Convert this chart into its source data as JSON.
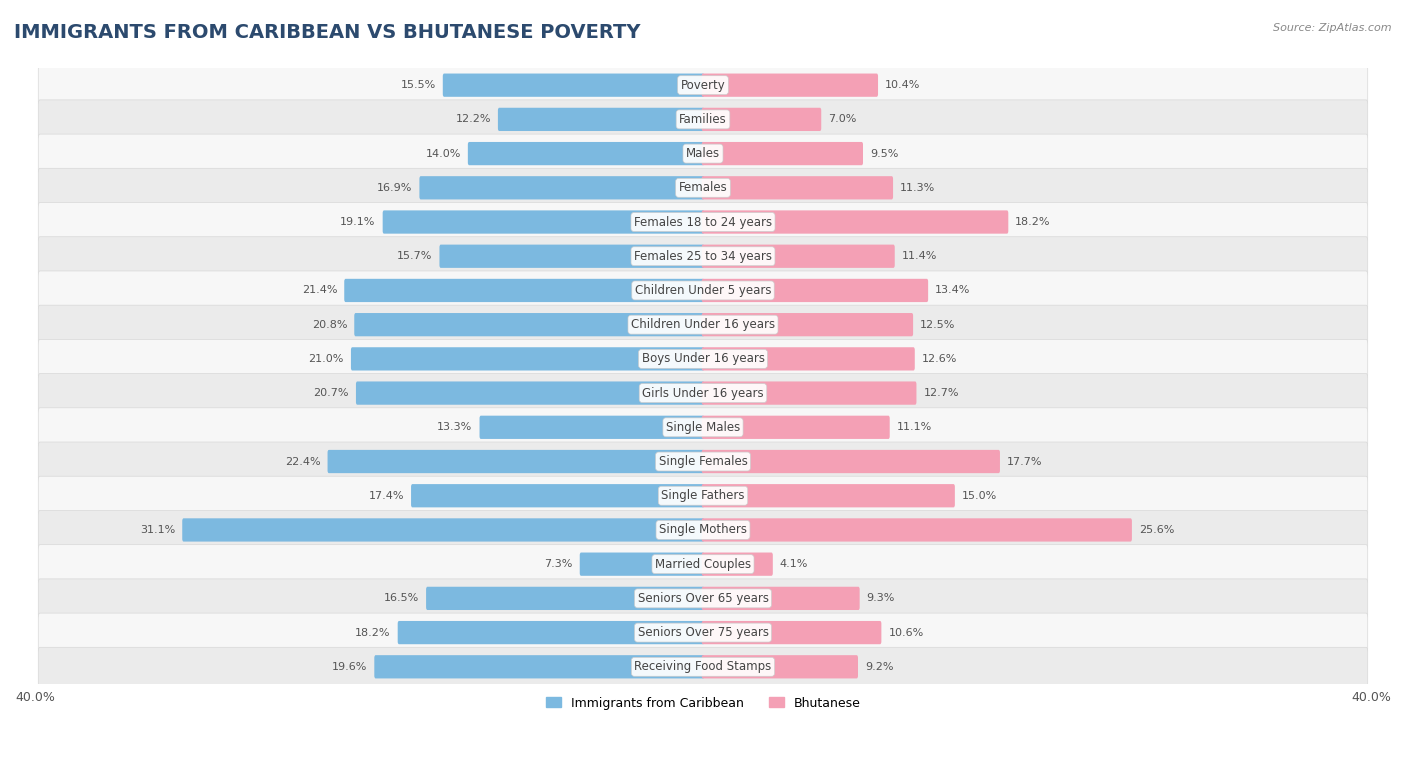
{
  "title": "IMMIGRANTS FROM CARIBBEAN VS BHUTANESE POVERTY",
  "source": "Source: ZipAtlas.com",
  "categories": [
    "Poverty",
    "Families",
    "Males",
    "Females",
    "Females 18 to 24 years",
    "Females 25 to 34 years",
    "Children Under 5 years",
    "Children Under 16 years",
    "Boys Under 16 years",
    "Girls Under 16 years",
    "Single Males",
    "Single Females",
    "Single Fathers",
    "Single Mothers",
    "Married Couples",
    "Seniors Over 65 years",
    "Seniors Over 75 years",
    "Receiving Food Stamps"
  ],
  "left_values": [
    15.5,
    12.2,
    14.0,
    16.9,
    19.1,
    15.7,
    21.4,
    20.8,
    21.0,
    20.7,
    13.3,
    22.4,
    17.4,
    31.1,
    7.3,
    16.5,
    18.2,
    19.6
  ],
  "right_values": [
    10.4,
    7.0,
    9.5,
    11.3,
    18.2,
    11.4,
    13.4,
    12.5,
    12.6,
    12.7,
    11.1,
    17.7,
    15.0,
    25.6,
    4.1,
    9.3,
    10.6,
    9.2
  ],
  "left_color": "#7cb9e0",
  "right_color": "#f4a0b5",
  "row_bg_odd": "#f7f7f7",
  "row_bg_even": "#ebebeb",
  "row_border": "#d8d8d8",
  "axis_max": 40.0,
  "legend_left": "Immigrants from Caribbean",
  "legend_right": "Bhutanese",
  "title_fontsize": 14,
  "label_fontsize": 8.5,
  "value_fontsize": 8.0,
  "bg_color": "#ffffff"
}
